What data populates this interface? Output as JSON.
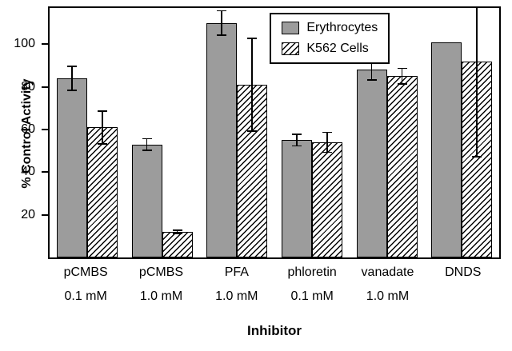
{
  "chart_data": {
    "type": "bar",
    "title": "",
    "xlabel": "Inhibitor",
    "ylabel": "% Control Activity",
    "ylim": [
      0,
      117
    ],
    "yticks": [
      20,
      40,
      60,
      80,
      100
    ],
    "grid": false,
    "legend_position": "top-right-inside",
    "categories": [
      "pCMBS",
      "pCMBS",
      "PFA",
      "phloretin",
      "vanadate",
      "DNDS"
    ],
    "doses": [
      "0.1 mM",
      "1.0 mM",
      "1.0 mM",
      "0.1 mM",
      "1.0 mM",
      ""
    ],
    "series": [
      {
        "name": "Erythrocytes",
        "style": "solid-gray",
        "values": [
          84,
          53,
          110,
          55,
          88,
          101
        ],
        "errors": [
          6,
          3,
          6,
          3,
          5,
          0
        ]
      },
      {
        "name": "K562 Cells",
        "style": "diagonal-hatch",
        "values": [
          61,
          12,
          81,
          54,
          85,
          92
        ],
        "errors": [
          8,
          1,
          22,
          5,
          4,
          45
        ]
      }
    ],
    "colors": {
      "bar_fill": "#9c9c9c",
      "line": "#000000",
      "background": "#ffffff"
    }
  }
}
